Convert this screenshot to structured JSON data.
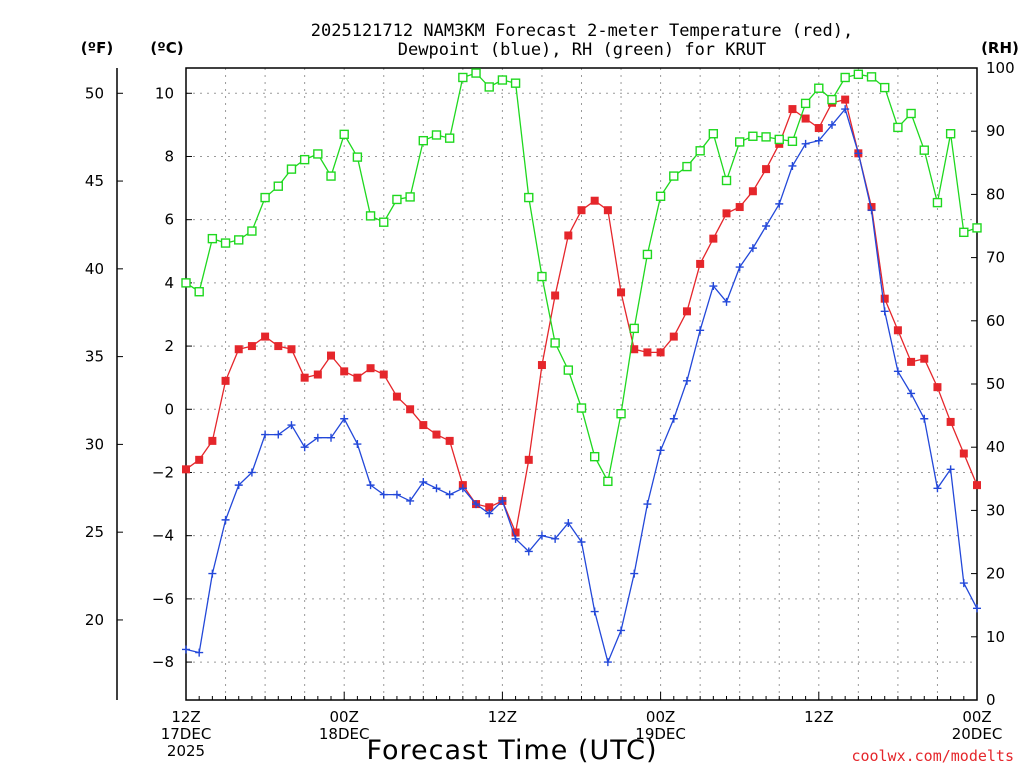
{
  "chart_data": {
    "type": "line",
    "title_line1": "2025121712 NAM3KM Forecast 2-meter Temperature (red),",
    "title_line2": "Dewpoint (blue), RH (green) for KRUT",
    "left_outer_unit": "(ºF)",
    "left_inner_unit": "(ºC)",
    "right_unit": "(RH)",
    "xlabel": "Forecast Time (UTC)",
    "credit": "coolwx.com/modelts",
    "x_range_hours": [
      0,
      60
    ],
    "y_celsius_range": [
      -9.2,
      10.8
    ],
    "y_rh_range": [
      0,
      100
    ],
    "fahrenheit_ticks": [
      "20",
      "25",
      "30",
      "35",
      "40",
      "45",
      "50"
    ],
    "celsius_ticks": [
      "-8",
      "-6",
      "-4",
      "-2",
      "0",
      "2",
      "4",
      "6",
      "8",
      "10"
    ],
    "rh_ticks": [
      "0",
      "10",
      "20",
      "30",
      "40",
      "50",
      "60",
      "70",
      "80",
      "90",
      "100"
    ],
    "x_ticks": [
      {
        "hour": 0,
        "lines": [
          "12Z",
          "17DEC",
          "2025"
        ]
      },
      {
        "hour": 12,
        "lines": [
          "00Z",
          "18DEC"
        ]
      },
      {
        "hour": 24,
        "lines": [
          "12Z"
        ]
      },
      {
        "hour": 36,
        "lines": [
          "00Z",
          "19DEC"
        ]
      },
      {
        "hour": 48,
        "lines": [
          "12Z"
        ]
      },
      {
        "hour": 60,
        "lines": [
          "00Z",
          "20DEC"
        ]
      }
    ],
    "hours": [
      0,
      1,
      2,
      3,
      4,
      5,
      6,
      7,
      8,
      9,
      10,
      11,
      12,
      13,
      14,
      15,
      16,
      17,
      18,
      19,
      20,
      21,
      22,
      23,
      24,
      25,
      26,
      27,
      28,
      29,
      30,
      31,
      32,
      33,
      34,
      35,
      36,
      37,
      38,
      39,
      40,
      41,
      42,
      43,
      44,
      45,
      46,
      47,
      48,
      49,
      50,
      51,
      52,
      53,
      54,
      55,
      56,
      57,
      58,
      59,
      60
    ],
    "series": [
      {
        "name": "Temperature",
        "unit": "C",
        "color": "#e5262b",
        "marker": "filled-square",
        "values": [
          -1.9,
          -1.6,
          -1.0,
          0.9,
          1.9,
          2.0,
          2.3,
          2.0,
          1.9,
          1.0,
          1.1,
          1.7,
          1.2,
          1.0,
          1.3,
          1.1,
          0.4,
          0.0,
          -0.5,
          -0.8,
          -1.0,
          -2.4,
          -3.0,
          -3.1,
          -2.9,
          -3.9,
          -1.6,
          1.4,
          3.6,
          5.5,
          6.3,
          6.6,
          6.3,
          3.7,
          1.9,
          1.8,
          1.8,
          2.3,
          3.1,
          4.6,
          5.4,
          6.2,
          6.4,
          6.9,
          7.6,
          8.4,
          9.5,
          9.2,
          8.9,
          9.7,
          9.8,
          8.1,
          6.4,
          3.5,
          2.5,
          1.5,
          1.6,
          0.7,
          -0.4,
          -1.4,
          -2.4
        ]
      },
      {
        "name": "Dewpoint",
        "unit": "C",
        "color": "#2348d9",
        "marker": "plus",
        "values": [
          -7.6,
          -7.7,
          -5.2,
          -3.5,
          -2.4,
          -2.0,
          -0.8,
          -0.8,
          -0.5,
          -1.2,
          -0.9,
          -0.9,
          -0.3,
          -1.1,
          -2.4,
          -2.7,
          -2.7,
          -2.9,
          -2.3,
          -2.5,
          -2.7,
          -2.5,
          -3.0,
          -3.3,
          -2.9,
          -4.1,
          -4.5,
          -4.0,
          -4.1,
          -3.6,
          -4.2,
          -6.4,
          -8.0,
          -7.0,
          -5.2,
          -3.0,
          -1.3,
          -0.3,
          0.9,
          2.5,
          3.9,
          3.4,
          4.5,
          5.1,
          5.8,
          6.5,
          7.7,
          8.4,
          8.5,
          9.0,
          9.5,
          8.1,
          6.3,
          3.1,
          1.2,
          0.5,
          -0.3,
          -2.5,
          -1.9,
          -5.5,
          -6.3
        ]
      },
      {
        "name": "RH",
        "unit": "%",
        "color": "#1fd81f",
        "marker": "open-square",
        "values": [
          66,
          64.6,
          73,
          72.3,
          72.8,
          74.2,
          79.5,
          81.3,
          84,
          85.5,
          86.4,
          82.9,
          89.5,
          85.9,
          76.6,
          75.6,
          79.2,
          79.6,
          88.5,
          89.4,
          88.9,
          98.5,
          99.2,
          97,
          98.1,
          97.6,
          79.5,
          67,
          56.5,
          52.2,
          46.2,
          38.5,
          34.6,
          45.3,
          58.8,
          70.5,
          79.7,
          82.9,
          84.4,
          86.9,
          89.6,
          82.2,
          88.3,
          89.2,
          89.1,
          88.7,
          88.4,
          94.4,
          96.8,
          95,
          98.5,
          99,
          98.6,
          96.9,
          90.6,
          92.8,
          87,
          78.7,
          89.6,
          74,
          74.7
        ]
      }
    ]
  }
}
